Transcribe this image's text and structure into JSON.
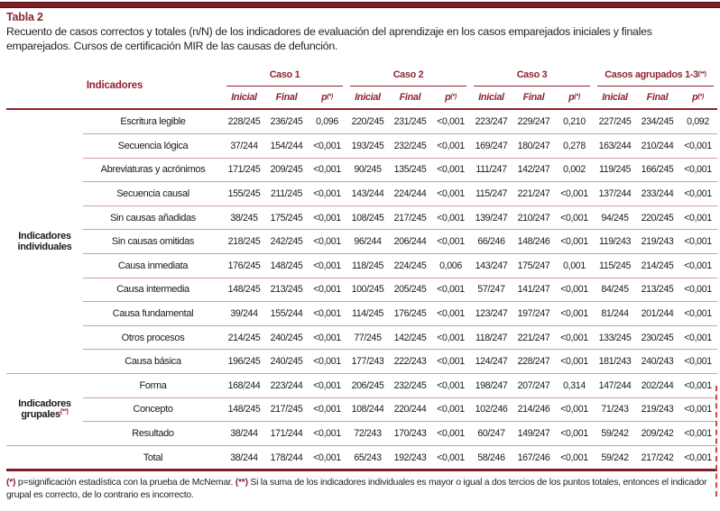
{
  "page": {
    "table_label": "Tabla 2",
    "caption": "Recuento de casos correctos y totales (n/N) de los indicadores de evaluación del aprendizaje en los casos emparejados iniciales y finales emparejados. Cursos de certificación MIR de las causas de defunción."
  },
  "colors": {
    "maroon": "#8e2430",
    "separator_pink": "#cfa0a0",
    "top_bar": "#7e1e27",
    "cut_mark_red": "#d34343"
  },
  "table": {
    "indicators_header": "Indicadores",
    "case_groups": [
      {
        "label": "Caso 1"
      },
      {
        "label": "Caso 2"
      },
      {
        "label": "Caso 3"
      },
      {
        "label": "Casos agrupados 1-3",
        "sup": "(**)"
      }
    ],
    "subheaders": {
      "inicial": "Inicial",
      "final": "Final",
      "p": "p",
      "p_sup": "(*)"
    },
    "sections": [
      {
        "group_label": "Indicadores individuales",
        "rows": [
          {
            "label": "Escritura legible",
            "values": [
              "228/245",
              "236/245",
              "0,096",
              "220/245",
              "231/245",
              "<0,001",
              "223/247",
              "229/247",
              "0,210",
              "227/245",
              "234/245",
              "0,092"
            ]
          },
          {
            "label": "Secuencia lógica",
            "values": [
              "37/244",
              "154/244",
              "<0,001",
              "193/245",
              "232/245",
              "<0,001",
              "169/247",
              "180/247",
              "0,278",
              "163/244",
              "210/244",
              "<0,001"
            ]
          },
          {
            "label": "Abreviaturas y acrónimos",
            "values": [
              "171/245",
              "209/245",
              "<0,001",
              "90/245",
              "135/245",
              "<0,001",
              "111/247",
              "142/247",
              "0,002",
              "119/245",
              "166/245",
              "<0,001"
            ]
          },
          {
            "label": "Secuencia causal",
            "values": [
              "155/245",
              "211/245",
              "<0,001",
              "143/244",
              "224/244",
              "<0,001",
              "115/247",
              "221/247",
              "<0,001",
              "137/244",
              "233/244",
              "<0,001"
            ]
          },
          {
            "label": "Sin causas añadidas",
            "values": [
              "38/245",
              "175/245",
              "<0,001",
              "108/245",
              "217/245",
              "<0,001",
              "139/247",
              "210/247",
              "<0,001",
              "94/245",
              "220/245",
              "<0,001"
            ]
          },
          {
            "label": "Sin causas omitidas",
            "values": [
              "218/245",
              "242/245",
              "<0,001",
              "96/244",
              "206/244",
              "<0,001",
              "66/246",
              "148/246",
              "<0,001",
              "119/243",
              "219/243",
              "<0,001"
            ]
          },
          {
            "label": "Causa inmediata",
            "values": [
              "176/245",
              "148/245",
              "<0,001",
              "118/245",
              "224/245",
              "0,006",
              "143/247",
              "175/247",
              "0,001",
              "115/245",
              "214/245",
              "<0,001"
            ]
          },
          {
            "label": "Causa intermedia",
            "values": [
              "148/245",
              "213/245",
              "<0,001",
              "100/245",
              "205/245",
              "<0,001",
              "57/247",
              "141/247",
              "<0,001",
              "84/245",
              "213/245",
              "<0,001"
            ]
          },
          {
            "label": "Causa fundamental",
            "values": [
              "39/244",
              "155/244",
              "<0,001",
              "114/245",
              "176/245",
              "<0,001",
              "123/247",
              "197/247",
              "<0,001",
              "81/244",
              "201/244",
              "<0,001"
            ]
          },
          {
            "label": "Otros procesos",
            "values": [
              "214/245",
              "240/245",
              "<0,001",
              "77/245",
              "142/245",
              "<0,001",
              "118/247",
              "221/247",
              "<0,001",
              "133/245",
              "230/245",
              "<0,001"
            ]
          },
          {
            "label": "Causa básica",
            "values": [
              "196/245",
              "240/245",
              "<0,001",
              "177/243",
              "222/243",
              "<0,001",
              "124/247",
              "228/247",
              "<0,001",
              "181/243",
              "240/243",
              "<0,001"
            ]
          }
        ]
      },
      {
        "group_label": "Indicadores grupales",
        "group_sup": "(**)",
        "rows": [
          {
            "label": "Forma",
            "values": [
              "168/244",
              "223/244",
              "<0,001",
              "206/245",
              "232/245",
              "<0,001",
              "198/247",
              "207/247",
              "0,314",
              "147/244",
              "202/244",
              "<0,001"
            ]
          },
          {
            "label": "Concepto",
            "values": [
              "148/245",
              "217/245",
              "<0,001",
              "108/244",
              "220/244",
              "<0,001",
              "102/246",
              "214/246",
              "<0,001",
              "71/243",
              "219/243",
              "<0,001"
            ]
          },
          {
            "label": "Resultado",
            "values": [
              "38/244",
              "171/244",
              "<0,001",
              "72/243",
              "170/243",
              "<0,001",
              "60/247",
              "149/247",
              "<0,001",
              "59/242",
              "209/242",
              "<0,001"
            ]
          }
        ]
      },
      {
        "group_label": "",
        "rows": [
          {
            "label": "Total",
            "values": [
              "38/244",
              "178/244",
              "<0,001",
              "65/243",
              "192/243",
              "<0,001",
              "58/246",
              "167/246",
              "<0,001",
              "59/242",
              "217/242",
              "<0,001"
            ]
          }
        ]
      }
    ],
    "footnote": {
      "mark1": "(*)",
      "text1": " p=significación estadística con la prueba de McNemar. ",
      "mark2": "(**)",
      "text2": " Si la suma de los indicadores individuales es mayor o igual a dos tercios de los puntos totales, entonces el indicador grupal es correcto, de lo contrario es incorrecto."
    }
  }
}
